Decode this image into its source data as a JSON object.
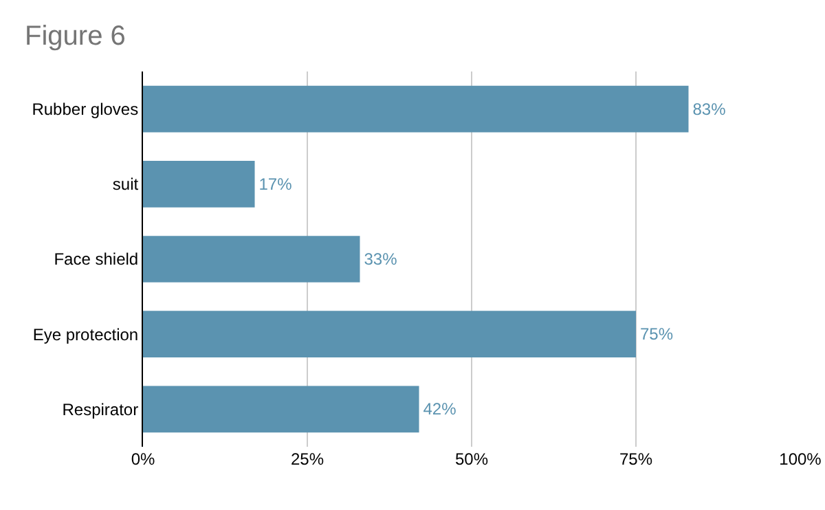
{
  "chart_data": {
    "type": "bar",
    "title": "Figure 6",
    "orientation": "horizontal",
    "categories": [
      "Rubber gloves",
      "suit",
      "Face shield",
      "Eye protection",
      "Respirator"
    ],
    "values": [
      83,
      17,
      33,
      75,
      42
    ],
    "value_labels": [
      "83%",
      "17%",
      "33%",
      "75%",
      "42%"
    ],
    "color": "#5b93b0",
    "xlim": [
      0,
      100
    ],
    "xticks": [
      {
        "value": 0,
        "label": "0%"
      },
      {
        "value": 25,
        "label": "25%"
      },
      {
        "value": 50,
        "label": "50%"
      },
      {
        "value": 75,
        "label": "75%"
      },
      {
        "value": 100,
        "label": "100%"
      }
    ],
    "grid": "x"
  }
}
